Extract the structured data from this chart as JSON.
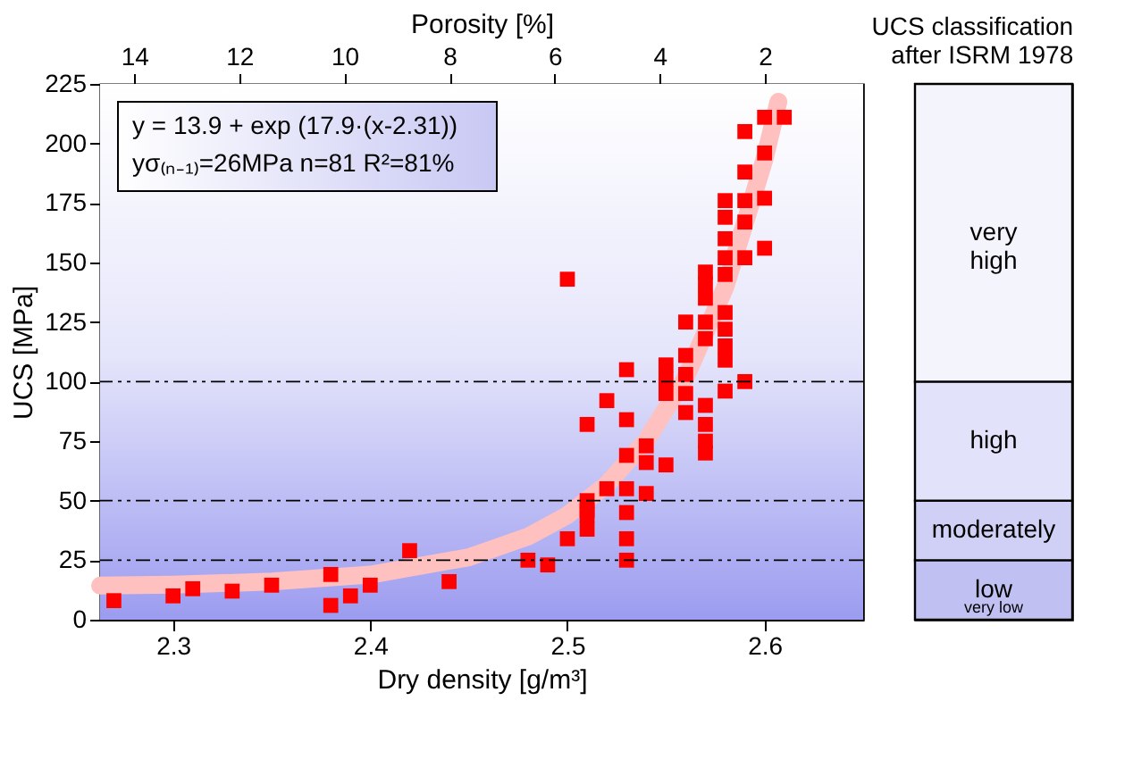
{
  "chart_data": [
    {
      "type": "scatter",
      "xlabel": "Dry density [g/m³]",
      "ylabel": "UCS [MPa]",
      "x2label": "Porosity [%]",
      "xlim": [
        2.263,
        2.65
      ],
      "xticks": [
        2.3,
        2.4,
        2.5,
        2.6
      ],
      "ylim": [
        0,
        225
      ],
      "yticks": [
        0,
        25,
        50,
        75,
        100,
        125,
        150,
        175,
        200,
        225
      ],
      "x2lim": [
        14.65,
        0.13
      ],
      "x2ticks": [
        14,
        12,
        10,
        8,
        6,
        4,
        2
      ],
      "grid": false,
      "series": [
        {
          "type": "line",
          "color": "#ffc0c0",
          "marker": "none",
          "line_style": "solid",
          "x": [
            2.263,
            2.3,
            2.35,
            2.4,
            2.45,
            2.48,
            2.5,
            2.52,
            2.54,
            2.56,
            2.58,
            2.6,
            2.607
          ],
          "values": [
            14.3,
            14.7,
            16,
            18.9,
            26.2,
            34.9,
            43.9,
            56.8,
            75.3,
            101.7,
            139.5,
            193.5,
            217.5
          ]
        },
        {
          "color": "#ff0000",
          "marker": "square",
          "x": [
            2.27,
            2.3,
            2.31,
            2.33,
            2.35,
            2.38,
            2.38,
            2.39,
            2.4,
            2.42,
            2.44,
            2.48,
            2.49,
            2.5,
            2.5,
            2.51,
            2.51,
            2.51,
            2.51,
            2.51,
            2.52,
            2.52,
            2.53,
            2.53,
            2.53,
            2.53,
            2.53,
            2.53,
            2.53,
            2.54,
            2.54,
            2.54,
            2.55,
            2.55,
            2.55,
            2.55,
            2.56,
            2.56,
            2.56,
            2.56,
            2.56,
            2.57,
            2.57,
            2.57,
            2.57,
            2.57,
            2.57,
            2.57,
            2.57,
            2.57,
            2.58,
            2.58,
            2.58,
            2.58,
            2.58,
            2.58,
            2.58,
            2.58,
            2.58,
            2.58,
            2.59,
            2.59,
            2.59,
            2.59,
            2.59,
            2.59,
            2.6,
            2.6,
            2.6,
            2.6,
            2.61
          ],
          "values": [
            8,
            10,
            13,
            12,
            14.5,
            19,
            6,
            10,
            14.5,
            29,
            16,
            25,
            23,
            34,
            143,
            38,
            44,
            50,
            82,
            46,
            55,
            92,
            25,
            34,
            45,
            55,
            69,
            84,
            105,
            53,
            66,
            73,
            65,
            107,
            101,
            95,
            111,
            125,
            103,
            95,
            87,
            90,
            82,
            75,
            70,
            118,
            125,
            135,
            141,
            146,
            129,
            122,
            115,
            109,
            96,
            176,
            169,
            160,
            152,
            145,
            100,
            205,
            188,
            176,
            167,
            152,
            211,
            196,
            177,
            156,
            211
          ]
        }
      ],
      "ref_lines": [
        {
          "axis": "y",
          "value": 25,
          "line_style": "dashed"
        },
        {
          "axis": "y",
          "value": 50,
          "line_style": "dashed"
        },
        {
          "axis": "y",
          "value": 100,
          "line_style": "dashed"
        }
      ],
      "annotations": [
        "y = 13.9 + exp (17.9·(x-2.31))",
        "yσ₍ₙ₋₁₎=26MPa  n=81  R²=81%"
      ]
    },
    {
      "type": "bar",
      "title": "UCS classification\nafter ISRM 1978",
      "stacked": true,
      "categories": [
        null
      ],
      "ylim": [
        0,
        225
      ],
      "tick_labels": false,
      "series": [
        {
          "name": "low",
          "color": "#c0c0f3",
          "values": [
            25
          ]
        },
        {
          "name": "moderately",
          "color": "#d0d0f6",
          "values": [
            25
          ]
        },
        {
          "name": "high",
          "color": "#e2e2fa",
          "values": [
            50
          ]
        },
        {
          "name": "very high",
          "color": "#f4f4fd",
          "values": [
            125
          ]
        }
      ],
      "annotations": [
        "very low"
      ]
    }
  ]
}
